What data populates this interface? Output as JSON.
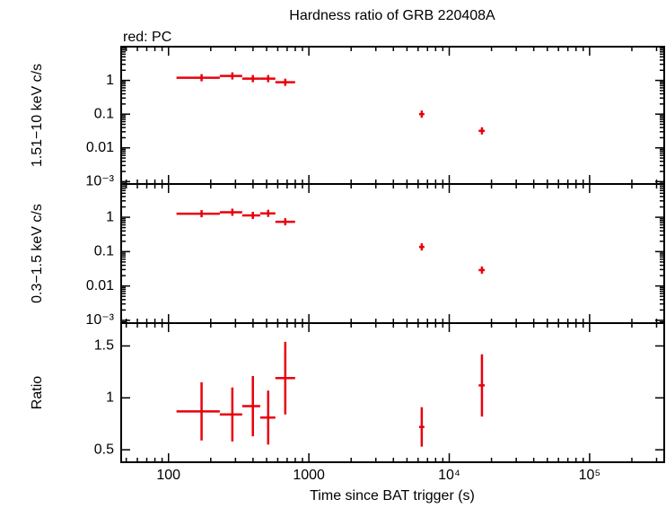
{
  "title": "Hardness ratio of GRB 220408A",
  "subtitle": "red: PC",
  "x_axis": {
    "label": "Time since BAT trigger (s)",
    "log": true,
    "xlim": [
      46,
      340000
    ],
    "xticks": [
      100,
      1000,
      {
        "value": 10000,
        "label": "10⁴"
      },
      {
        "value": 100000,
        "label": "10⁵"
      }
    ]
  },
  "chart_data": [
    {
      "type": "errorbar",
      "ylabel": "1.51−10 keV c/s",
      "ylog": true,
      "minor_ticks": true,
      "ylim": [
        0.00085,
        10
      ],
      "yticks": [
        {
          "value": 0.001,
          "label": "10⁻³"
        },
        0.01,
        0.1,
        1
      ],
      "series": [
        {
          "color": "#e8000b",
          "x": [
            172,
            285,
            399,
            513,
            679,
            6370,
            17100
          ],
          "x_lo": [
            114,
            232,
            335,
            450,
            577,
            6100,
            16200
          ],
          "x_hi": [
            232,
            335,
            450,
            577,
            798,
            6650,
            17900
          ],
          "values": [
            1.2,
            1.36,
            1.13,
            1.13,
            0.88,
            0.1,
            0.032
          ]
        }
      ]
    },
    {
      "type": "errorbar",
      "ylabel": "0.3−1.5 keV c/s",
      "ylog": true,
      "minor_ticks": true,
      "ylim": [
        0.00083,
        9.3
      ],
      "yticks": [
        {
          "value": 0.001,
          "label": "10⁻³"
        },
        0.01,
        0.1,
        1
      ],
      "series": [
        {
          "color": "#e8000b",
          "x": [
            172,
            285,
            399,
            513,
            679,
            6370,
            17100
          ],
          "x_lo": [
            114,
            232,
            335,
            450,
            577,
            6100,
            16200
          ],
          "x_hi": [
            232,
            335,
            450,
            577,
            798,
            6650,
            17900
          ],
          "values": [
            1.27,
            1.4,
            1.13,
            1.3,
            0.74,
            0.137,
            0.029
          ]
        }
      ]
    },
    {
      "type": "errorbar",
      "ylabel": "Ratio",
      "ylog": false,
      "minor_ticks": true,
      "ylim": [
        0.38,
        1.72
      ],
      "yticks": [
        0.5,
        1,
        1.5
      ],
      "series": [
        {
          "color": "#e8000b",
          "x": [
            172,
            285,
            399,
            513,
            679,
            6370,
            17100
          ],
          "x_lo": [
            114,
            232,
            335,
            450,
            577,
            6100,
            16200
          ],
          "x_hi": [
            232,
            335,
            450,
            577,
            798,
            6650,
            17900
          ],
          "values": [
            0.87,
            0.84,
            0.92,
            0.81,
            1.19,
            0.72,
            1.12
          ],
          "errors": [
            0.28,
            0.26,
            0.29,
            0.26,
            0.35,
            0.19,
            0.3
          ]
        }
      ]
    }
  ]
}
